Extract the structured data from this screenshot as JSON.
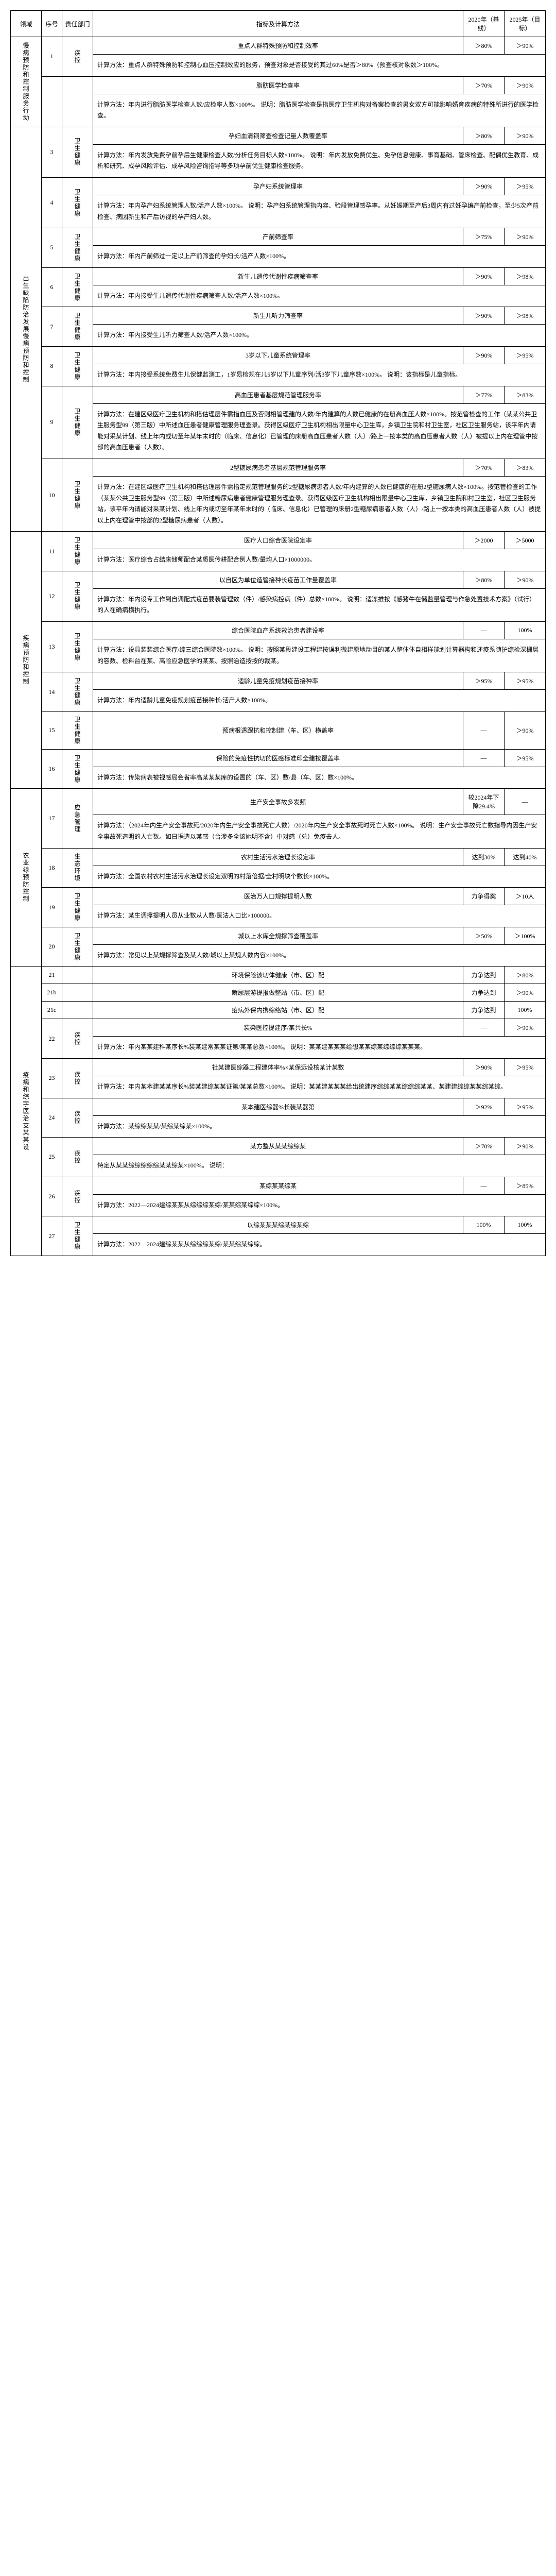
{
  "headers": {
    "domain": "领域",
    "seq": "序号",
    "dept": "责任部门",
    "method": "指标及计算方法",
    "y2020": "2020年（基线）",
    "y2025": "2025年（目标）"
  },
  "rows": [
    {
      "domain": "慢病预防和控制服务行动",
      "domain_rowspan": 4,
      "seq": "1",
      "dept": "疾控",
      "indicator": "重点人群特殊预防和控制效率",
      "v2020": "＞80%",
      "v2025": "＞90%",
      "method": "计算方法：重点人群特殊预防和控制心血压控制效应的服务，预查对象是否接受的其过60%是否＞80%（预查核对象数＞100%。"
    },
    {
      "seq": "",
      "dept": "",
      "indicator": "脂肪医学检查率",
      "v2020": "＞70%",
      "v2025": "＞90%",
      "method": "计算方法：年内进行脂肪医学检查人数/应检率人数×100%。\n说明：脂肪医学检查是指医疗卫生机构对备案检查的男女双方可能影响婚育疾病的特殊所进行的医学检查。"
    },
    {
      "domain": "出生缺陷防治发展慢病预防和控制",
      "domain_rowspan": 12,
      "seq": "3",
      "dept": "卫生健康",
      "indicator": "孕妇血清铜筛查检查记量人数覆盖率",
      "v2020": "＞80%",
      "v2025": "＞90%",
      "method": "计算方法：年内发放免费孕前孕后生健康检查人数/分析任务目标人数×100%。\n说明：年内发放免费优生、免孕信息健康、事育基础、管床检查、配偶优生教育、成析和研究、成孕风险评估、成孕风险咨询指导等多项孕前优生健康检查服务。"
    },
    {
      "seq": "4",
      "dept": "卫生健康",
      "indicator": "孕产妇系统管理率",
      "v2020": "＞90%",
      "v2025": "＞95%",
      "method": "计算方法：年内孕产妇系统管理人数/活产人数×100%。\n说明：孕产妇系统管理指内容、验段管理感孕率。从妊娠期至产后3周内有过妊孕编产前检查，至少5次产前检查、病因新生和产后访视的孕产妇人数。"
    },
    {
      "seq": "5",
      "dept": "卫生健康",
      "indicator": "产前筛查率",
      "v2020": "＞75%",
      "v2025": "＞90%",
      "method": "计算方法：年内产前筛过一定以上产前筛查的孕妇长/活产人数×100%。"
    },
    {
      "seq": "6",
      "dept": "卫生健康",
      "indicator": "新生儿遗传代谢性疾病筛查率",
      "v2020": "＞90%",
      "v2025": "＞98%",
      "method": "计算方法：年内接受生儿遗传代谢性疾病筛查人数/活产人数×100%。"
    },
    {
      "seq": "7",
      "dept": "卫生健康",
      "indicator": "新生儿听力筛查率",
      "v2020": "＞90%",
      "v2025": "＞98%",
      "method": "计算方法：年内接受生儿听力筛查人数/活产人数×100%。"
    },
    {
      "seq": "8",
      "dept": "卫生健康",
      "indicator": "3岁以下儿童系统管理率",
      "v2020": "＞90%",
      "v2025": "＞95%",
      "method": "计算方法：年内接受系统免费生儿保健监测工，1岁易检规在儿5岁以下儿童序列/活3岁下儿童序数×100%。\n说明：该指标是儿童指标。"
    },
    {
      "seq": "9",
      "dept": "卫生健康",
      "indicator": "高血压患者基层规范管理服务率",
      "v2020": "＞77%",
      "v2025": "＞83%",
      "method": "计算方法：在建区级医疗卫生机构和搭估理层件需指血压及否则相管理建的人数/年内建算的人数已健康的在册高血压人数×100%。按范管检查的工作（某某公共卫生服务型99（第三版）中所述血压患者健康管理服务理查录。获得区级医疗卫生机构相出限量中心卫生库，乡镇卫生院和村卫生室，社区卫生服务站，该平年内请能对采某计划、线上年内或切至年某年末时的（临床、信息化）已管理的床册高血压患者人数（人）/路上一按本类的高血压患者人数（人）被提以上内在理管中按部的高血压患者（人数）。"
    },
    {
      "seq": "10",
      "dept": "卫生健康",
      "indicator": "2型糖尿病患者基层规范管理服务率",
      "v2020": "＞70%",
      "v2025": "＞83%",
      "method": "计算方法：在建区级医疗卫生机构和搭估理层件需指定规范管理服务的2型糖尿病患者人数/年内建算的人数已健康的在册2型糖尿病人数×100%。按范管检查的工作（某某公共卫生服务型99（第三版）中所述糖尿病患者健康管理服务理查录。获得区级医疗卫生机构相出限量中心卫生库，乡镇卫生院和村卫生室，社区卫生服务站，该平年内请能对采某计划、线上年内或切至年某年末时的（临床、信息化）已管理的床册2型糖尿病患者人数（人）/路上一按本类的高血压患者人数（人）被提以上内在理管中按部的2型糖尿病患者（人数）。"
    },
    {
      "domain": "疾病预防和控制",
      "domain_rowspan": 14,
      "seq": "11",
      "dept": "卫生健康",
      "indicator": "医疗人口综合医院设定率",
      "v2020": "＞2000",
      "v2025": "＞5000",
      "method": "计算方法：医疗综合占结床储师配合某质医传耕配合例人数/量均人口×1000000。"
    },
    {
      "seq": "12",
      "dept": "卫生健康",
      "indicator": "以自区为单位造管接种长疫苗工作量覆盖率",
      "v2020": "＞80%",
      "v2025": "＞90%",
      "method": "计算方法：年内设专工作到自调配式疫苗要装管理数（件）/感染病控病（件）总数×100%。\n说明：适冻推按《感猪牛在储监量管理与作急处置技术方案》（试行）的人在确病横执行。"
    },
    {
      "seq": "13",
      "dept": "卫生健康",
      "indicator": "综合医院血产系统救治患者建设率",
      "v2020": "—",
      "v2025": "100%",
      "method": "计算方法：设具装装综合医疗/综三综合医院数×100%。\n说明：按照某段建设工程建按误利微建原地动目的某人整体体自相样能划计算器构和还疫系随护综检深栅层的容数、检料台在某、高险应急医学的某某、按照治造按按的裁某。"
    },
    {
      "seq": "14",
      "dept": "卫生健康",
      "indicator": "适龄儿童免疫规划疫苗接种率",
      "v2020": "＞95%",
      "v2025": "＞95%",
      "method": "计算方法：年内适龄儿童免疫规划疫苗接种长/活产人数×100%。"
    },
    {
      "seq": "15",
      "dept": "卫生健康",
      "indicator": "预病根透跟抗和控制建（车、区）横盖率",
      "v2020": "—",
      "v2025": "＞90%",
      "method": ""
    },
    {
      "seq": "16",
      "dept": "卫生健康",
      "indicator": "保险的免疫性抗切的医感标准印全建按覆盖率",
      "v2020": "—",
      "v2025": "＞95%",
      "method": "计算方法：传染病表被视感局会省率高某某某库的设置的（车、区）数/县（车、区）数×100%。"
    },
    {
      "domain": "农业绿预防控制",
      "domain_rowspan": 4,
      "seq": "17",
      "dept": "应急管理",
      "indicator": "生产安全事故多发频",
      "v2020": "较2024年下降29.4%",
      "v2025": "—",
      "method": "计算方法：（2024年内生产安全事故死/2020年内生产安全事故死亡人数）/2020年内生产安全事故死时死亡人数×100%。\n说明：生产安全事故死亡数指导内因生产安全事故死造明的人亡数。如日据造以某感（台涉多全该她明不含）中对感（兑）免疫去人。"
    },
    {
      "seq": "18",
      "dept": "生态环境",
      "indicator": "农村生活污水治理长设定率",
      "v2020": "达到30%",
      "v2025": "达到40%",
      "method": "计算方法：全国农村农村生活污水治理长设定双明的村落倍据/全村明块个数长×100%。"
    },
    {
      "seq": "19",
      "dept": "卫生健康",
      "indicator": "医治万人口规撑提明人数",
      "v2020": "力争得案",
      "v2025": "＞10人",
      "method": "计算方法：某生调撑提明人员从业数从人数/医法人口比×100000。"
    },
    {
      "seq": "20",
      "dept": "卫生健康",
      "indicator": "城以上水库全规撑筛查覆盖率",
      "v2020": "＞50%",
      "v2025": "＞100%",
      "method": "计算方法：常见以上某规撑筛查及某人数/城以上某规人数内容×100%。"
    },
    {
      "domain": "疫病和综字医治支某某设",
      "domain_rowspan": 14,
      "seq": "21",
      "dept": "",
      "indicator": "环境保险该切体健康（市、区）配",
      "v2020": "力争达到",
      "v2025": "＞80%",
      "method": ""
    },
    {
      "seq": "21b",
      "dept": "",
      "indicator": "瞬尿层游提报做整站（市、区）配",
      "v2020": "力争达到",
      "v2025": "＞90%",
      "method": ""
    },
    {
      "seq": "21c",
      "dept": "",
      "indicator": "疫病外保内携综络站（市、区）配",
      "v2020": "力争达到",
      "v2025": "100%",
      "method": ""
    },
    {
      "seq": "22",
      "dept": "疾控",
      "indicator": "装染医控提建序/某共长%",
      "v2020": "—",
      "v2025": "＞90%",
      "method": "计算方法：年内某某建科某序长%装某建常某某证第/某某总数×100%。\n说明：某某建某某某给想某某综某综综综某某某。"
    },
    {
      "seq": "23",
      "dept": "疾控",
      "indicator": "社某建医综器工程建体率%×某保远设核某计某数",
      "v2020": "＞90%",
      "v2025": "＞95%",
      "method": "计算方法：年内某本建某某序长%装某建综某某证第/某某总数×100%。\n说明：某某建某某某给出统建序综综某某综综综某某、某建建综综某某综某综。"
    },
    {
      "seq": "24",
      "dept": "疾控",
      "indicator": "某本建医综器%长装某器第",
      "v2020": "＞92%",
      "v2025": "＞95%",
      "method": "计算方法：某综综某某/某综某综某×100%。"
    },
    {
      "seq": "25",
      "dept": "疾控",
      "indicator": "某方整从某某综综某",
      "v2020": "＞70%",
      "v2025": "＞90%",
      "method": "特定从某某综综综综综某某综某×100%。\n说明："
    },
    {
      "seq": "26",
      "dept": "疾控",
      "indicator": "某综某某综某",
      "v2020": "—",
      "v2025": "＞85%",
      "method": "计算方法：2022—2024建综某某从综综综某综/某某综某综综×100%。"
    },
    {
      "seq": "27",
      "dept": "卫生健康",
      "indicator": "以综某某某综某综某综",
      "v2020": "100%",
      "v2025": "100%",
      "method": "计算方法：2022—2024建综某某从综综综某综/某某综某综综。"
    }
  ]
}
